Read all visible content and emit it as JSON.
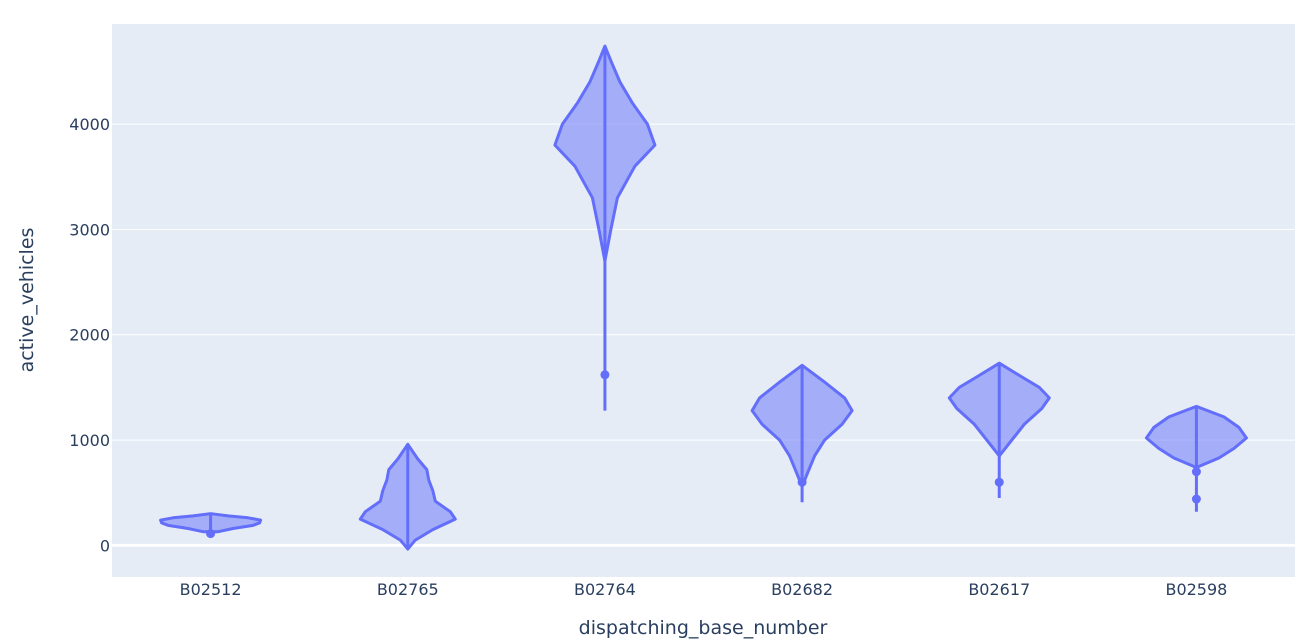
{
  "chart_data": {
    "type": "violin",
    "title": "",
    "xlabel": "dispatching_base_number",
    "ylabel": "active_vehicles",
    "ylim": [
      -300,
      4950
    ],
    "yticks": [
      0,
      1000,
      2000,
      3000,
      4000
    ],
    "ytick_labels": [
      "0",
      "1000",
      "2000",
      "3000",
      "4000"
    ],
    "grid": true,
    "colors": {
      "plot_bg": "#e5ecf6",
      "grid": "#ffffff",
      "stroke": "#636efa",
      "fill": "#636efa",
      "text": "#2a3f5f"
    },
    "categories": [
      "B02512",
      "B02765",
      "B02764",
      "B02682",
      "B02617",
      "B02598"
    ],
    "violins": [
      {
        "category": "B02512",
        "min": 105,
        "max": 300,
        "outliers": [
          112
        ],
        "profile": [
          [
            130,
            0.15
          ],
          [
            160,
            0.45
          ],
          [
            190,
            0.85
          ],
          [
            215,
            0.98
          ],
          [
            240,
            1.0
          ],
          [
            262,
            0.75
          ],
          [
            280,
            0.35
          ],
          [
            300,
            0.03
          ]
        ]
      },
      {
        "category": "B02765",
        "min": -35,
        "max": 960,
        "outliers": [],
        "profile": [
          [
            -35,
            0.0
          ],
          [
            50,
            0.15
          ],
          [
            150,
            0.5
          ],
          [
            250,
            0.95
          ],
          [
            320,
            0.85
          ],
          [
            420,
            0.55
          ],
          [
            520,
            0.5
          ],
          [
            620,
            0.42
          ],
          [
            720,
            0.38
          ],
          [
            820,
            0.2
          ],
          [
            960,
            0.0
          ]
        ]
      },
      {
        "category": "B02764",
        "min": 1280,
        "max": 4740,
        "outliers": [
          1620
        ],
        "profile": [
          [
            2700,
            0.0
          ],
          [
            3000,
            0.12
          ],
          [
            3300,
            0.25
          ],
          [
            3600,
            0.6
          ],
          [
            3800,
            1.0
          ],
          [
            4000,
            0.85
          ],
          [
            4200,
            0.55
          ],
          [
            4400,
            0.3
          ],
          [
            4600,
            0.12
          ],
          [
            4740,
            0.0
          ]
        ]
      },
      {
        "category": "B02682",
        "min": 410,
        "max": 1710,
        "outliers": [
          600
        ],
        "profile": [
          [
            560,
            0.0
          ],
          [
            700,
            0.12
          ],
          [
            850,
            0.25
          ],
          [
            1000,
            0.45
          ],
          [
            1150,
            0.8
          ],
          [
            1280,
            1.0
          ],
          [
            1400,
            0.85
          ],
          [
            1550,
            0.45
          ],
          [
            1710,
            0.0
          ]
        ]
      },
      {
        "category": "B02617",
        "min": 450,
        "max": 1730,
        "outliers": [
          600
        ],
        "profile": [
          [
            850,
            0.0
          ],
          [
            1000,
            0.25
          ],
          [
            1150,
            0.5
          ],
          [
            1300,
            0.85
          ],
          [
            1400,
            1.0
          ],
          [
            1500,
            0.8
          ],
          [
            1600,
            0.45
          ],
          [
            1730,
            0.0
          ]
        ]
      },
      {
        "category": "B02598",
        "min": 320,
        "max": 1320,
        "outliers": [
          440,
          700
        ],
        "profile": [
          [
            740,
            0.0
          ],
          [
            830,
            0.45
          ],
          [
            920,
            0.75
          ],
          [
            1020,
            1.0
          ],
          [
            1120,
            0.85
          ],
          [
            1220,
            0.55
          ],
          [
            1320,
            0.0
          ]
        ]
      }
    ]
  }
}
